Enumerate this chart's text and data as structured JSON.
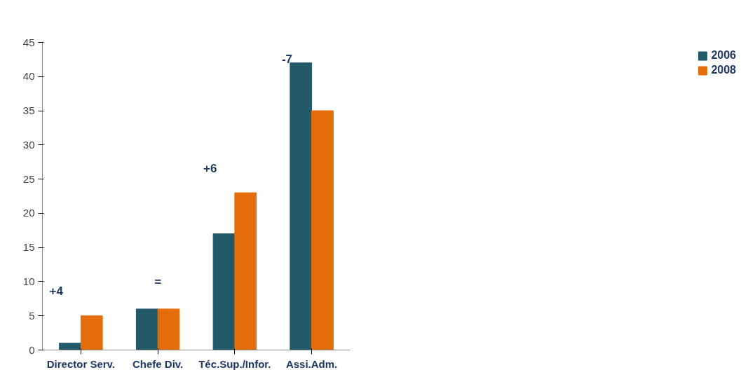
{
  "chart_data": {
    "type": "bar",
    "categories": [
      "Director Serv.",
      "Chefe Div.",
      "Téc.Sup./Infor.",
      "Assi.Adm."
    ],
    "series": [
      {
        "name": "2006",
        "color": "#215968",
        "values": [
          1,
          6,
          17,
          42
        ]
      },
      {
        "name": "2008",
        "color": "#e46c0a",
        "values": [
          5,
          6,
          23,
          35
        ]
      }
    ],
    "ylim": [
      0,
      45
    ],
    "yticks": [
      0,
      5,
      10,
      15,
      20,
      25,
      30,
      35,
      40,
      45
    ],
    "grid": false,
    "legend": "right",
    "annotations": [
      "+4",
      "=",
      "+6",
      "-7"
    ]
  }
}
